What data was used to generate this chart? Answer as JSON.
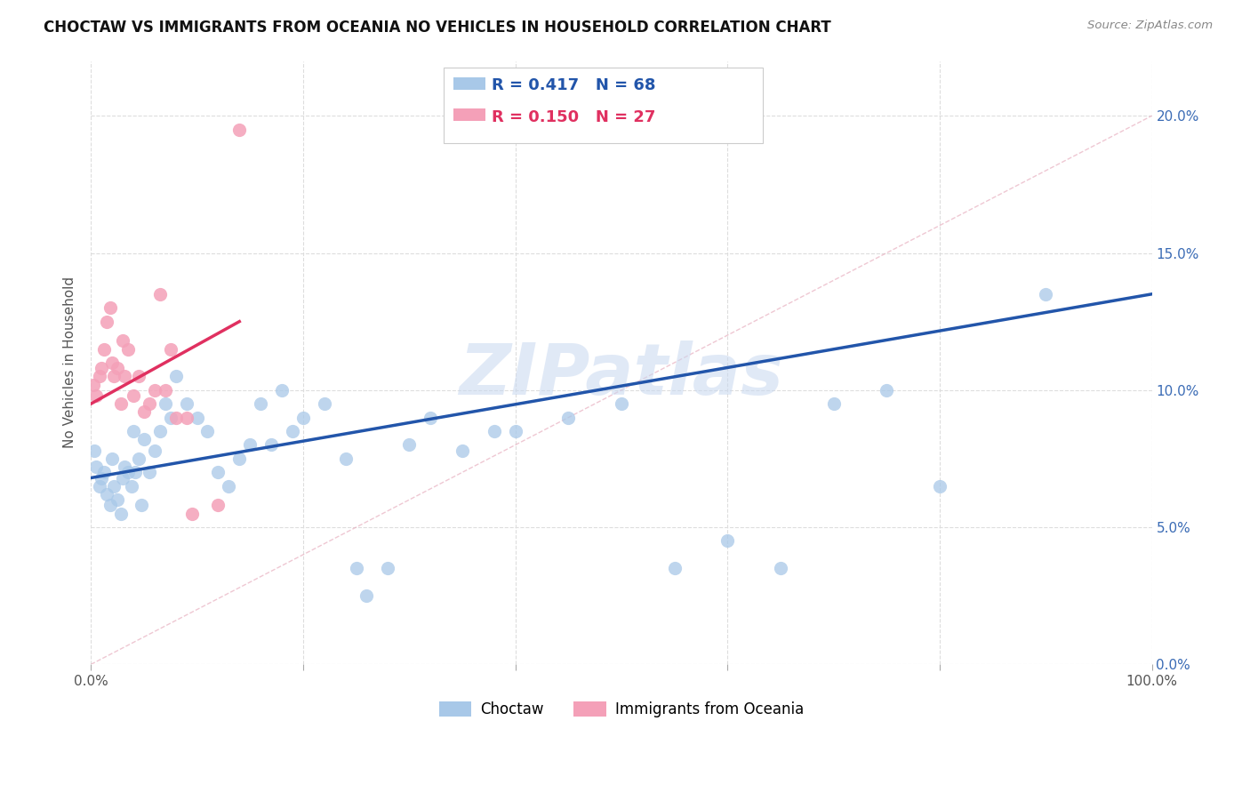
{
  "title": "CHOCTAW VS IMMIGRANTS FROM OCEANIA NO VEHICLES IN HOUSEHOLD CORRELATION CHART",
  "source": "Source: ZipAtlas.com",
  "ylabel": "No Vehicles in Household",
  "xlim": [
    0,
    100
  ],
  "ylim": [
    0,
    22
  ],
  "yticks": [
    0,
    5,
    10,
    15,
    20
  ],
  "ytick_labels": [
    "0.0%",
    "5.0%",
    "10.0%",
    "15.0%",
    "20.0%"
  ],
  "xticks": [
    0,
    20,
    40,
    60,
    80,
    100
  ],
  "xtick_labels": [
    "0.0%",
    "",
    "",
    "",
    "",
    "100.0%"
  ],
  "legend_entry1_r": "0.417",
  "legend_entry1_n": "68",
  "legend_entry2_r": "0.150",
  "legend_entry2_n": "27",
  "choctaw_color": "#a8c8e8",
  "oceania_color": "#f4a0b8",
  "choctaw_line_color": "#2255aa",
  "oceania_line_color": "#e03060",
  "choctaw_label": "Choctaw",
  "oceania_label": "Immigrants from Oceania",
  "background_color": "#ffffff",
  "grid_color": "#dddddd",
  "watermark": "ZIPatlas",
  "choctaw_x": [
    0.3,
    0.5,
    0.8,
    1.0,
    1.2,
    1.5,
    1.8,
    2.0,
    2.2,
    2.5,
    2.8,
    3.0,
    3.2,
    3.5,
    3.8,
    4.0,
    4.2,
    4.5,
    4.8,
    5.0,
    5.5,
    6.0,
    6.5,
    7.0,
    7.5,
    8.0,
    9.0,
    10.0,
    11.0,
    12.0,
    13.0,
    14.0,
    15.0,
    16.0,
    17.0,
    18.0,
    19.0,
    20.0,
    22.0,
    24.0,
    25.0,
    26.0,
    28.0,
    30.0,
    32.0,
    35.0,
    38.0,
    40.0,
    45.0,
    50.0,
    55.0,
    60.0,
    65.0,
    70.0,
    75.0,
    80.0,
    90.0
  ],
  "choctaw_y": [
    7.8,
    7.2,
    6.5,
    6.8,
    7.0,
    6.2,
    5.8,
    7.5,
    6.5,
    6.0,
    5.5,
    6.8,
    7.2,
    7.0,
    6.5,
    8.5,
    7.0,
    7.5,
    5.8,
    8.2,
    7.0,
    7.8,
    8.5,
    9.5,
    9.0,
    10.5,
    9.5,
    9.0,
    8.5,
    7.0,
    6.5,
    7.5,
    8.0,
    9.5,
    8.0,
    10.0,
    8.5,
    9.0,
    9.5,
    7.5,
    3.5,
    2.5,
    3.5,
    8.0,
    9.0,
    7.8,
    8.5,
    8.5,
    9.0,
    9.5,
    3.5,
    4.5,
    3.5,
    9.5,
    10.0,
    6.5,
    13.5
  ],
  "oceania_x": [
    0.2,
    0.5,
    0.8,
    1.0,
    1.2,
    1.5,
    1.8,
    2.0,
    2.2,
    2.5,
    2.8,
    3.0,
    3.2,
    3.5,
    4.0,
    4.5,
    5.0,
    5.5,
    6.0,
    6.5,
    7.0,
    7.5,
    8.0,
    9.0,
    9.5,
    12.0,
    14.0
  ],
  "oceania_y": [
    10.2,
    9.8,
    10.5,
    10.8,
    11.5,
    12.5,
    13.0,
    11.0,
    10.5,
    10.8,
    9.5,
    11.8,
    10.5,
    11.5,
    9.8,
    10.5,
    9.2,
    9.5,
    10.0,
    13.5,
    10.0,
    11.5,
    9.0,
    9.0,
    5.5,
    5.8,
    19.5
  ],
  "choctaw_line_x": [
    0,
    100
  ],
  "choctaw_line_y": [
    6.8,
    13.5
  ],
  "oceania_line_x": [
    0,
    14
  ],
  "oceania_line_y": [
    9.5,
    12.5
  ],
  "ref_line_x": [
    0,
    100
  ],
  "ref_line_y": [
    0,
    20
  ]
}
